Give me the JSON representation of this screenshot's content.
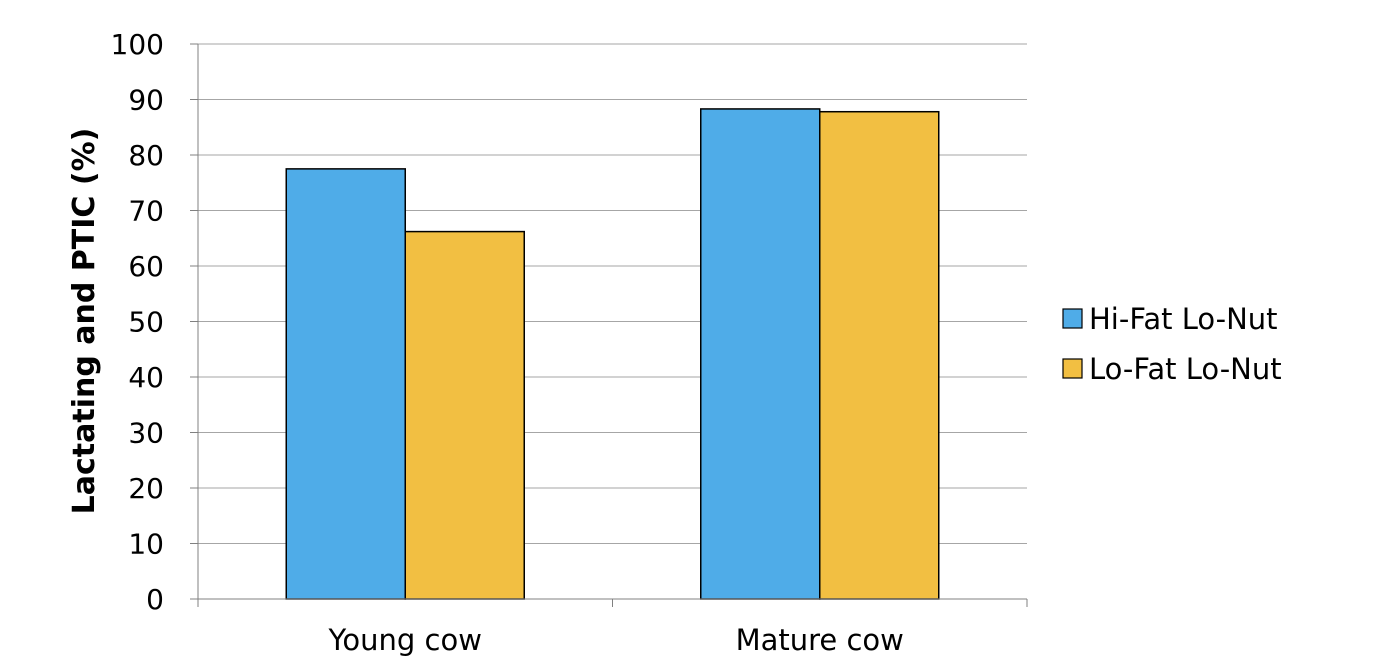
{
  "chart_data": {
    "type": "bar",
    "categories": [
      "Young cow",
      "Mature cow"
    ],
    "series": [
      {
        "name": "Hi-Fat Lo-Nut",
        "values": [
          77.5,
          88.3
        ],
        "color": "#4FACE8"
      },
      {
        "name": "Lo-Fat Lo-Nut",
        "values": [
          66.2,
          87.8
        ],
        "color": "#F2BF42"
      }
    ],
    "ylabel": "Lactating and PTIC (%)",
    "xlabel": "",
    "ylim": [
      0,
      100
    ],
    "yticks": [
      0,
      10,
      20,
      30,
      40,
      50,
      60,
      70,
      80,
      90,
      100
    ],
    "grid": true,
    "legend_position": "right"
  }
}
